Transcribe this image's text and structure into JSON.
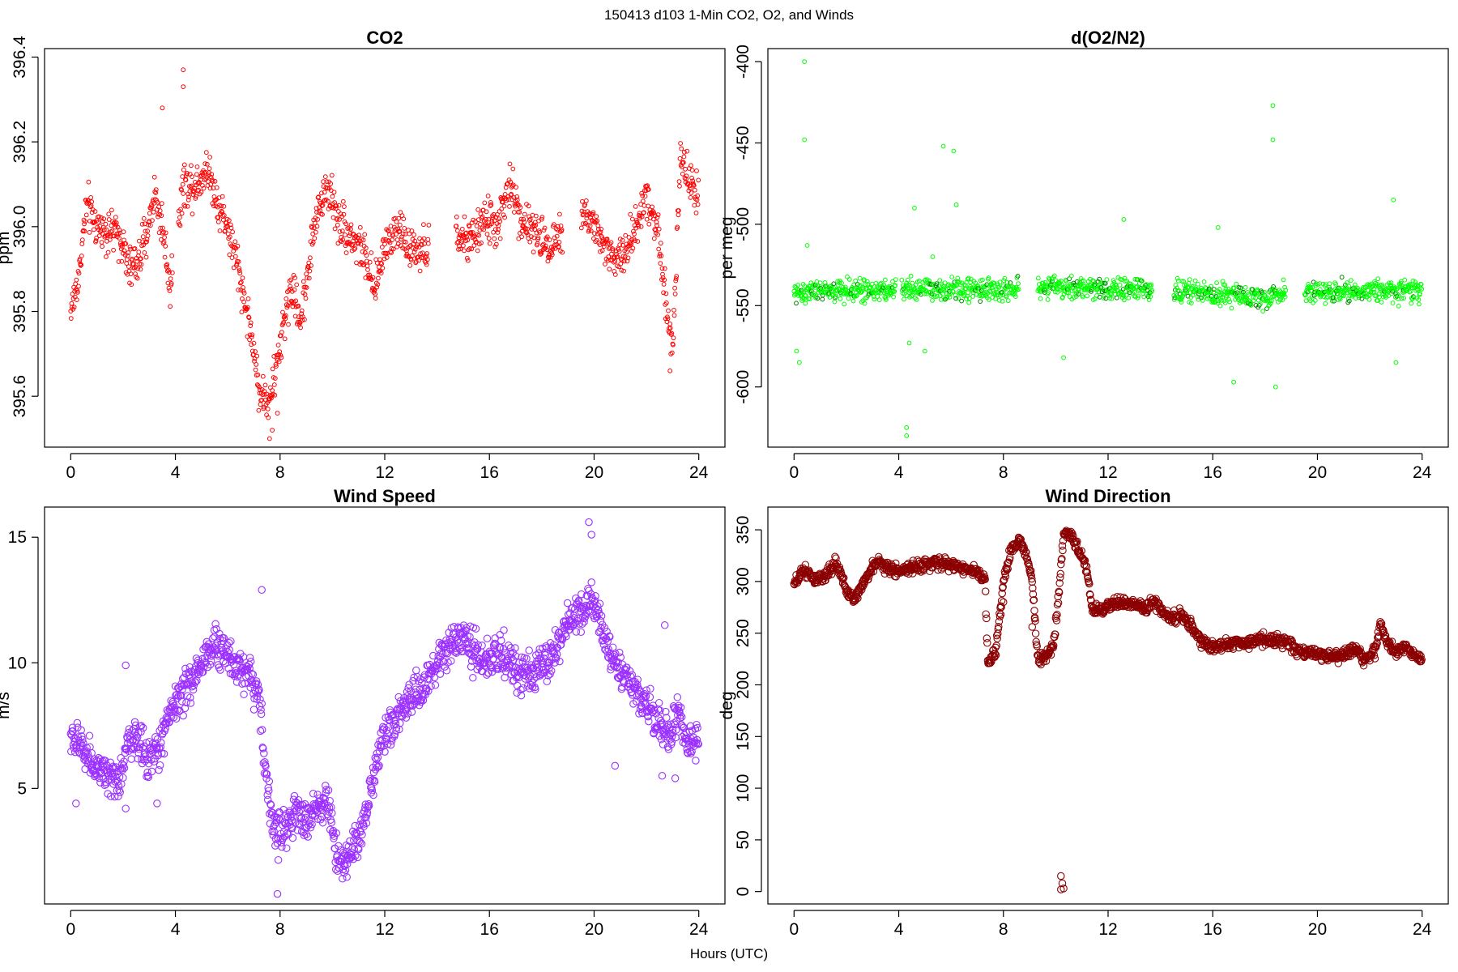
{
  "figure": {
    "title": "150413   d103   1-Min CO2, O2, and Winds",
    "xlabel": "Hours (UTC)"
  },
  "chart_data": [
    {
      "type": "scatter",
      "title": "CO2",
      "ylabel": "ppm",
      "color": "#ff0000",
      "marker_size": "small",
      "xlim": [
        -1,
        25
      ],
      "ylim": [
        395.48,
        396.42
      ],
      "xticks": [
        0,
        4,
        8,
        12,
        16,
        20,
        24
      ],
      "yticks": [
        395.6,
        395.8,
        396.0,
        396.2,
        396.4
      ],
      "ytick_labels": [
        "395.6",
        "395.8",
        "396.0",
        "396.2",
        "396.4"
      ],
      "ytick_rotation": "vertical",
      "trend": [
        [
          0,
          395.8
        ],
        [
          0.3,
          395.88
        ],
        [
          0.6,
          396.05
        ],
        [
          1.0,
          396.0
        ],
        [
          1.5,
          395.99
        ],
        [
          1.9,
          395.98
        ],
        [
          2.2,
          395.9
        ],
        [
          2.6,
          395.92
        ],
        [
          2.9,
          395.98
        ],
        [
          3.2,
          396.08
        ],
        [
          3.5,
          396.0
        ],
        [
          3.8,
          395.86
        ],
        [
          4.3,
          396.1
        ],
        [
          4.8,
          396.1
        ],
        [
          5.2,
          396.14
        ],
        [
          5.6,
          396.06
        ],
        [
          6.0,
          396.0
        ],
        [
          6.4,
          395.9
        ],
        [
          6.8,
          395.78
        ],
        [
          7.2,
          395.62
        ],
        [
          7.6,
          395.58
        ],
        [
          8.0,
          395.72
        ],
        [
          8.4,
          395.86
        ],
        [
          8.8,
          395.78
        ],
        [
          9.3,
          396.0
        ],
        [
          9.8,
          396.1
        ],
        [
          10.2,
          396.02
        ],
        [
          10.7,
          395.98
        ],
        [
          11.2,
          395.94
        ],
        [
          11.6,
          395.84
        ],
        [
          12.0,
          395.96
        ],
        [
          12.5,
          396.0
        ],
        [
          13.0,
          395.94
        ],
        [
          13.5,
          395.94
        ],
        [
          14.8,
          395.98
        ],
        [
          15.3,
          395.96
        ],
        [
          15.8,
          396.02
        ],
        [
          16.3,
          396.0
        ],
        [
          16.8,
          396.1
        ],
        [
          17.2,
          396.02
        ],
        [
          17.8,
          395.98
        ],
        [
          18.3,
          395.96
        ],
        [
          18.7,
          395.98
        ],
        [
          19.6,
          396.04
        ],
        [
          20.0,
          396.0
        ],
        [
          20.5,
          395.94
        ],
        [
          21.0,
          395.92
        ],
        [
          21.5,
          395.98
        ],
        [
          22.0,
          396.08
        ],
        [
          22.4,
          396.0
        ],
        [
          22.8,
          395.8
        ],
        [
          23.0,
          395.72
        ],
        [
          23.3,
          396.16
        ],
        [
          23.7,
          396.1
        ],
        [
          24.0,
          396.08
        ]
      ],
      "gaps": [
        [
          3.9,
          4.1
        ],
        [
          13.7,
          14.7
        ],
        [
          18.8,
          19.5
        ]
      ],
      "spread": 0.045,
      "outliers": [
        [
          4.3,
          396.37
        ],
        [
          4.3,
          396.33
        ],
        [
          7.7,
          395.52
        ],
        [
          7.6,
          395.5
        ],
        [
          7.9,
          395.56
        ],
        [
          3.5,
          396.28
        ],
        [
          22.9,
          395.66
        ]
      ]
    },
    {
      "type": "scatter",
      "title": "d(O2/N2)",
      "ylabel": "per meg",
      "color": "#00ff00",
      "color_alt": "#008000",
      "marker_size": "small",
      "xlim": [
        -1,
        25
      ],
      "ylim": [
        -637,
        -392
      ],
      "xticks": [
        0,
        4,
        8,
        12,
        16,
        20,
        24
      ],
      "yticks": [
        -600,
        -550,
        -500,
        -450,
        -400
      ],
      "ytick_labels": [
        "-600",
        "-550",
        "-500",
        "-450",
        "-400"
      ],
      "ytick_rotation": "vertical",
      "trend": [
        [
          0,
          -542
        ],
        [
          2,
          -541
        ],
        [
          4,
          -540
        ],
        [
          4.8,
          -540
        ],
        [
          6,
          -540
        ],
        [
          8,
          -540
        ],
        [
          10,
          -538
        ],
        [
          12,
          -540
        ],
        [
          13.6,
          -540
        ],
        [
          14.5,
          -541
        ],
        [
          16,
          -543
        ],
        [
          18,
          -545
        ],
        [
          18.8,
          -542
        ],
        [
          19.5,
          -542
        ],
        [
          22,
          -541
        ],
        [
          24,
          -540
        ]
      ],
      "gaps": [
        [
          3.9,
          4.1
        ],
        [
          8.6,
          9.3
        ],
        [
          13.7,
          14.5
        ],
        [
          18.8,
          19.5
        ]
      ],
      "spread": 6,
      "outliers": [
        [
          0.4,
          -400
        ],
        [
          0.4,
          -448
        ],
        [
          0.2,
          -585
        ],
        [
          0.1,
          -578
        ],
        [
          4.3,
          -625
        ],
        [
          4.3,
          -630
        ],
        [
          4.6,
          -490
        ],
        [
          5.7,
          -452
        ],
        [
          6.1,
          -455
        ],
        [
          6.2,
          -488
        ],
        [
          18.3,
          -427
        ],
        [
          18.3,
          -448
        ],
        [
          18.4,
          -600
        ],
        [
          16.8,
          -597
        ],
        [
          16.2,
          -502
        ],
        [
          22.9,
          -485
        ],
        [
          23.0,
          -585
        ],
        [
          12.6,
          -497
        ],
        [
          10.3,
          -582
        ],
        [
          5.0,
          -578
        ],
        [
          4.4,
          -573
        ],
        [
          0.5,
          -513
        ],
        [
          5.3,
          -520
        ]
      ]
    },
    {
      "type": "scatter",
      "title": "Wind Speed",
      "ylabel": "m/s",
      "color": "#9b30ff",
      "marker_size": "large",
      "xlim": [
        -1,
        25
      ],
      "ylim": [
        0.4,
        16.2
      ],
      "xticks": [
        0,
        4,
        8,
        12,
        16,
        20,
        24
      ],
      "yticks": [
        5,
        10,
        15
      ],
      "ytick_labels": [
        "5",
        "10",
        "15"
      ],
      "ytick_rotation": "horizontal",
      "trend": [
        [
          0,
          7.0
        ],
        [
          0.5,
          6.6
        ],
        [
          1.0,
          5.8
        ],
        [
          1.5,
          5.2
        ],
        [
          1.9,
          5.4
        ],
        [
          2.2,
          7.0
        ],
        [
          2.6,
          6.8
        ],
        [
          3.0,
          6.2
        ],
        [
          3.4,
          6.6
        ],
        [
          3.8,
          8.2
        ],
        [
          4.3,
          8.8
        ],
        [
          4.8,
          9.6
        ],
        [
          5.3,
          10.6
        ],
        [
          5.8,
          10.6
        ],
        [
          6.3,
          10.0
        ],
        [
          6.8,
          9.6
        ],
        [
          7.2,
          8.8
        ],
        [
          7.5,
          5.0
        ],
        [
          7.8,
          3.2
        ],
        [
          8.2,
          3.4
        ],
        [
          8.6,
          4.0
        ],
        [
          9.0,
          3.6
        ],
        [
          9.4,
          4.2
        ],
        [
          9.8,
          4.6
        ],
        [
          10.2,
          2.2
        ],
        [
          10.6,
          2.2
        ],
        [
          11.0,
          3.0
        ],
        [
          11.5,
          5.0
        ],
        [
          11.9,
          7.2
        ],
        [
          12.4,
          7.6
        ],
        [
          12.9,
          8.6
        ],
        [
          13.4,
          8.8
        ],
        [
          13.9,
          9.6
        ],
        [
          14.4,
          10.6
        ],
        [
          14.9,
          11.0
        ],
        [
          15.4,
          10.4
        ],
        [
          15.9,
          10.0
        ],
        [
          16.4,
          10.4
        ],
        [
          16.9,
          9.8
        ],
        [
          17.4,
          9.6
        ],
        [
          17.9,
          9.8
        ],
        [
          18.4,
          10.2
        ],
        [
          18.9,
          11.4
        ],
        [
          19.4,
          12.0
        ],
        [
          19.9,
          12.6
        ],
        [
          20.4,
          10.8
        ],
        [
          20.9,
          9.8
        ],
        [
          21.4,
          9.2
        ],
        [
          21.9,
          8.4
        ],
        [
          22.4,
          7.8
        ],
        [
          22.8,
          7.0
        ],
        [
          23.2,
          8.0
        ],
        [
          23.6,
          6.6
        ],
        [
          24.0,
          7.0
        ]
      ],
      "gaps": [],
      "spread": 0.7,
      "outliers": [
        [
          7.3,
          12.9
        ],
        [
          7.9,
          0.8
        ],
        [
          19.8,
          15.6
        ],
        [
          19.9,
          15.1
        ],
        [
          2.1,
          9.9
        ],
        [
          2.1,
          4.2
        ],
        [
          0.2,
          4.4
        ],
        [
          3.3,
          4.4
        ],
        [
          20.8,
          5.9
        ],
        [
          22.7,
          11.5
        ],
        [
          22.6,
          5.5
        ],
        [
          23.1,
          5.4
        ]
      ]
    },
    {
      "type": "scatter",
      "title": "Wind Direction",
      "ylabel": "deg",
      "color": "#8b0000",
      "marker_size": "large",
      "xlim": [
        -1,
        25
      ],
      "ylim": [
        -12,
        372
      ],
      "xticks": [
        0,
        4,
        8,
        12,
        16,
        20,
        24
      ],
      "yticks": [
        0,
        50,
        100,
        150,
        200,
        250,
        300,
        350
      ],
      "ytick_labels": [
        "0",
        "50",
        "100",
        "150",
        "200",
        "250",
        "300",
        "350"
      ],
      "ytick_rotation": "vertical",
      "trend": [
        [
          0,
          296
        ],
        [
          0.4,
          312
        ],
        [
          0.8,
          300
        ],
        [
          1.2,
          306
        ],
        [
          1.6,
          318
        ],
        [
          2.0,
          292
        ],
        [
          2.3,
          282
        ],
        [
          2.8,
          306
        ],
        [
          3.2,
          320
        ],
        [
          3.6,
          312
        ],
        [
          4.0,
          310
        ],
        [
          4.8,
          316
        ],
        [
          5.6,
          318
        ],
        [
          6.4,
          314
        ],
        [
          7.0,
          308
        ],
        [
          7.3,
          300
        ],
        [
          7.4,
          222
        ],
        [
          7.7,
          230
        ],
        [
          8.0,
          300
        ],
        [
          8.3,
          330
        ],
        [
          8.6,
          340
        ],
        [
          8.9,
          325
        ],
        [
          9.1,
          300
        ],
        [
          9.3,
          228
        ],
        [
          9.6,
          228
        ],
        [
          9.9,
          236
        ],
        [
          10.1,
          280
        ],
        [
          10.3,
          346
        ],
        [
          10.6,
          344
        ],
        [
          10.9,
          330
        ],
        [
          11.2,
          310
        ],
        [
          11.4,
          272
        ],
        [
          11.8,
          274
        ],
        [
          12.2,
          278
        ],
        [
          12.6,
          280
        ],
        [
          13.0,
          278
        ],
        [
          13.4,
          274
        ],
        [
          13.8,
          280
        ],
        [
          14.3,
          264
        ],
        [
          14.8,
          268
        ],
        [
          15.2,
          256
        ],
        [
          15.6,
          242
        ],
        [
          16.0,
          236
        ],
        [
          16.6,
          240
        ],
        [
          17.2,
          240
        ],
        [
          17.8,
          244
        ],
        [
          18.4,
          244
        ],
        [
          18.9,
          240
        ],
        [
          19.3,
          232
        ],
        [
          19.8,
          230
        ],
        [
          20.3,
          228
        ],
        [
          20.8,
          228
        ],
        [
          21.4,
          234
        ],
        [
          21.8,
          224
        ],
        [
          22.2,
          232
        ],
        [
          22.4,
          258
        ],
        [
          22.7,
          240
        ],
        [
          23.0,
          232
        ],
        [
          23.4,
          236
        ],
        [
          23.8,
          228
        ],
        [
          24.0,
          226
        ]
      ],
      "gaps": [],
      "spread": 5,
      "outliers": [
        [
          10.2,
          15
        ],
        [
          10.25,
          8
        ],
        [
          10.3,
          3
        ],
        [
          10.2,
          2
        ],
        [
          8.0,
          280
        ],
        [
          7.9,
          268
        ],
        [
          9.2,
          264
        ],
        [
          9.1,
          256
        ]
      ]
    }
  ]
}
